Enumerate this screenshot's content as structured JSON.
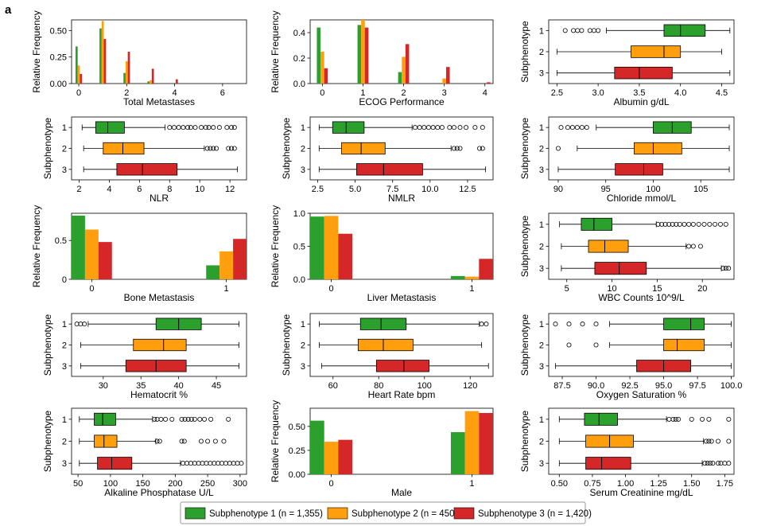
{
  "panel_label": "a",
  "colors": {
    "s1": "#2ca02c",
    "s2": "#ff9f0e",
    "s3": "#d62728"
  },
  "legend": [
    {
      "label": "Subphenotype 1 (n = 1,355)",
      "color": "#2ca02c"
    },
    {
      "label": "Subphenotype 2 (n = 450)",
      "color": "#ff9f0e"
    },
    {
      "label": "Subphenotype 3 (n = 1,420)",
      "color": "#d62728"
    }
  ],
  "chart_data": [
    {
      "type": "bar",
      "xlabel": "Total Metastases",
      "ylabel": "Relative Frequency",
      "xlim": [
        -0.3,
        7.0
      ],
      "ylim": [
        0,
        0.6
      ],
      "xticks": [
        0,
        2,
        4,
        6
      ],
      "yticks": [
        0,
        0.25,
        0.5
      ],
      "yticklabels": [
        "0.00",
        "0.25",
        "0.50"
      ],
      "categories": [
        0,
        1,
        2,
        3,
        4,
        5,
        6
      ],
      "series": [
        {
          "name": "Subphenotype 1",
          "values": [
            0.35,
            0.52,
            0.1,
            0.02,
            0.0,
            0.0,
            0.0
          ]
        },
        {
          "name": "Subphenotype 2",
          "values": [
            0.17,
            0.59,
            0.21,
            0.03,
            0.0,
            0.0,
            0.0
          ]
        },
        {
          "name": "Subphenotype 3",
          "values": [
            0.09,
            0.42,
            0.3,
            0.14,
            0.04,
            0.0,
            0.0
          ]
        }
      ]
    },
    {
      "type": "bar",
      "xlabel": "ECOG Performance",
      "ylabel": "Relative Frequency",
      "xlim": [
        -0.3,
        4.2
      ],
      "ylim": [
        0,
        0.5
      ],
      "xticks": [
        0,
        1,
        2,
        3,
        4
      ],
      "yticks": [
        0,
        0.2,
        0.4
      ],
      "yticklabels": [
        "0.0",
        "0.2",
        "0.4"
      ],
      "categories": [
        0,
        1,
        2,
        3,
        4
      ],
      "series": [
        {
          "name": "Subphenotype 1",
          "values": [
            0.44,
            0.46,
            0.09,
            0.0,
            0.0
          ]
        },
        {
          "name": "Subphenotype 2",
          "values": [
            0.25,
            0.5,
            0.21,
            0.04,
            0.0
          ]
        },
        {
          "name": "Subphenotype 3",
          "values": [
            0.12,
            0.44,
            0.31,
            0.13,
            0.01
          ]
        }
      ]
    },
    {
      "type": "box",
      "xlabel": "Albumin g/dL",
      "ylabel": "Subphenotype",
      "xlim": [
        2.4,
        4.65
      ],
      "xticks": [
        2.5,
        3.0,
        3.5,
        4.0,
        4.5
      ],
      "xticklabels": [
        "2.5",
        "3.0",
        "3.5",
        "4.0",
        "4.5"
      ],
      "groups": [
        {
          "name": "1",
          "whislo": 3.1,
          "q1": 3.8,
          "med": 4.0,
          "q3": 4.3,
          "whishi": 4.6,
          "fliers": [
            2.6,
            2.7,
            2.75,
            2.8,
            2.9,
            2.95,
            3.0
          ]
        },
        {
          "name": "2",
          "whislo": 2.5,
          "q1": 3.4,
          "med": 3.8,
          "q3": 4.0,
          "whishi": 4.5,
          "fliers": []
        },
        {
          "name": "3",
          "whislo": 2.5,
          "q1": 3.2,
          "med": 3.5,
          "q3": 3.9,
          "whishi": 4.6,
          "fliers": []
        }
      ]
    },
    {
      "type": "box",
      "xlabel": "NLR",
      "ylabel": "Subphenotype",
      "xlim": [
        1.5,
        13.1
      ],
      "xticks": [
        2,
        4,
        6,
        8,
        10,
        12
      ],
      "xticklabels": [
        "2",
        "4",
        "6",
        "8",
        "10",
        "12"
      ],
      "groups": [
        {
          "name": "1",
          "whislo": 2.2,
          "q1": 3.1,
          "med": 3.9,
          "q3": 5.0,
          "whishi": 7.7,
          "fliers": [
            8.0,
            8.3,
            8.6,
            8.9,
            9.2,
            9.4,
            9.7,
            10.1,
            10.4,
            10.6,
            10.9,
            11.3,
            11.8,
            12.1,
            12.3
          ]
        },
        {
          "name": "2",
          "whislo": 2.3,
          "q1": 3.6,
          "med": 4.9,
          "q3": 6.3,
          "whishi": 10.3,
          "fliers": [
            10.5,
            10.7,
            10.9,
            11.1,
            11.9,
            12.1,
            12.3
          ]
        },
        {
          "name": "3",
          "whislo": 2.3,
          "q1": 4.5,
          "med": 6.2,
          "q3": 8.5,
          "whishi": 12.5,
          "fliers": []
        }
      ]
    },
    {
      "type": "box",
      "xlabel": "NMLR",
      "ylabel": "Subphenotype",
      "xlim": [
        2.0,
        14.2
      ],
      "xticks": [
        2.5,
        5.0,
        7.5,
        10.0,
        12.5
      ],
      "xticklabels": [
        "2.5",
        "5.0",
        "7.5",
        "10.0",
        "12.5"
      ],
      "groups": [
        {
          "name": "1",
          "whislo": 2.6,
          "q1": 3.5,
          "med": 4.4,
          "q3": 5.6,
          "whishi": 8.8,
          "fliers": [
            9.0,
            9.3,
            9.6,
            9.9,
            10.2,
            10.5,
            10.8,
            11.3,
            11.6,
            12.0,
            12.4,
            13.0,
            13.5
          ]
        },
        {
          "name": "2",
          "whislo": 2.6,
          "q1": 4.1,
          "med": 5.4,
          "q3": 7.0,
          "whishi": 11.4,
          "fliers": [
            11.6,
            11.8,
            12.0,
            13.3,
            13.5
          ]
        },
        {
          "name": "3",
          "whislo": 2.6,
          "q1": 5.1,
          "med": 6.9,
          "q3": 9.5,
          "whishi": 13.7,
          "fliers": []
        }
      ]
    },
    {
      "type": "box",
      "xlabel": "Chloride mmol/L",
      "ylabel": "Subphenotype",
      "xlim": [
        89,
        108.5
      ],
      "xticks": [
        90,
        95,
        100,
        105
      ],
      "xticklabels": [
        "90",
        "95",
        "100",
        "105"
      ],
      "groups": [
        {
          "name": "1",
          "whislo": 94,
          "q1": 100,
          "med": 102,
          "q3": 104,
          "whishi": 108,
          "fliers": [
            90.3,
            91,
            91.5,
            92,
            92.5,
            93
          ]
        },
        {
          "name": "2",
          "whislo": 92,
          "q1": 98,
          "med": 100,
          "q3": 103,
          "whishi": 108,
          "fliers": [
            90
          ]
        },
        {
          "name": "3",
          "whislo": 90,
          "q1": 96,
          "med": 99,
          "q3": 101,
          "whishi": 108,
          "fliers": []
        }
      ]
    },
    {
      "type": "bar",
      "xlabel": "Bone Metastasis",
      "ylabel": "Relative Frequency",
      "xlim": [
        -0.15,
        1.15
      ],
      "ylim": [
        0,
        0.85
      ],
      "xticks": [
        0,
        1
      ],
      "yticks": [
        0,
        0.5
      ],
      "yticklabels": [
        "0",
        "0.5"
      ],
      "categories": [
        0,
        1
      ],
      "series": [
        {
          "name": "Subphenotype 1",
          "values": [
            0.82,
            0.18
          ]
        },
        {
          "name": "Subphenotype 2",
          "values": [
            0.64,
            0.36
          ]
        },
        {
          "name": "Subphenotype 3",
          "values": [
            0.48,
            0.52
          ]
        }
      ]
    },
    {
      "type": "bar",
      "xlabel": "Liver Metastasis",
      "ylabel": "Relative Frequency",
      "xlim": [
        -0.15,
        1.15
      ],
      "ylim": [
        0,
        1.0
      ],
      "xticks": [
        0,
        1
      ],
      "yticks": [
        0,
        0.5,
        1.0
      ],
      "yticklabels": [
        "0.0",
        "0.5",
        "1.0"
      ],
      "categories": [
        0,
        1
      ],
      "series": [
        {
          "name": "Subphenotype 1",
          "values": [
            0.95,
            0.05
          ]
        },
        {
          "name": "Subphenotype 2",
          "values": [
            0.96,
            0.04
          ]
        },
        {
          "name": "Subphenotype 3",
          "values": [
            0.69,
            0.31
          ]
        }
      ]
    },
    {
      "type": "box",
      "xlabel": "WBC Counts 10^9/L",
      "ylabel": "Subphenotype",
      "xlim": [
        3.0,
        23.5
      ],
      "xticks": [
        5,
        10,
        15,
        20
      ],
      "xticklabels": [
        "5",
        "10",
        "15",
        "20"
      ],
      "groups": [
        {
          "name": "1",
          "whislo": 4.2,
          "q1": 6.6,
          "med": 8.0,
          "q3": 10.0,
          "whishi": 14.9,
          "fliers": [
            15.1,
            15.5,
            15.9,
            16.3,
            16.7,
            17.1,
            17.5,
            18.0,
            18.5,
            19.0,
            19.6,
            20.2,
            20.8,
            21.4,
            22.0,
            22.6
          ]
        },
        {
          "name": "2",
          "whislo": 4.4,
          "q1": 7.4,
          "med": 9.2,
          "q3": 11.8,
          "whishi": 18.2,
          "fliers": [
            18.5,
            19.0,
            19.8
          ]
        },
        {
          "name": "3",
          "whislo": 4.4,
          "q1": 8.1,
          "med": 10.8,
          "q3": 13.8,
          "whishi": 22.1,
          "fliers": [
            22.3,
            22.6,
            22.9
          ]
        }
      ]
    },
    {
      "type": "box",
      "xlabel": "Hematocrit %",
      "ylabel": "Subphenotype",
      "xlim": [
        25.8,
        49.0
      ],
      "xticks": [
        30,
        35,
        40,
        45
      ],
      "xticklabels": [
        "30",
        "35",
        "40",
        "45"
      ],
      "groups": [
        {
          "name": "1",
          "whislo": 28,
          "q1": 37,
          "med": 40,
          "q3": 43,
          "whishi": 48,
          "fliers": [
            26.5,
            27,
            27.5
          ]
        },
        {
          "name": "2",
          "whislo": 27,
          "q1": 34,
          "med": 38,
          "q3": 41,
          "whishi": 48,
          "fliers": []
        },
        {
          "name": "3",
          "whislo": 27,
          "q1": 33,
          "med": 37,
          "q3": 41,
          "whishi": 48,
          "fliers": []
        }
      ]
    },
    {
      "type": "box",
      "xlabel": "Heart Rate bpm",
      "ylabel": "Subphenotype",
      "xlim": [
        50,
        130
      ],
      "xticks": [
        60,
        80,
        100,
        120
      ],
      "xticklabels": [
        "60",
        "80",
        "100",
        "120"
      ],
      "groups": [
        {
          "name": "1",
          "whislo": 54,
          "q1": 72,
          "med": 81,
          "q3": 92,
          "whishi": 124,
          "fliers": [
            125,
            127
          ]
        },
        {
          "name": "2",
          "whislo": 54,
          "q1": 71,
          "med": 82,
          "q3": 95,
          "whishi": 125,
          "fliers": []
        },
        {
          "name": "3",
          "whislo": 55,
          "q1": 79,
          "med": 91,
          "q3": 102,
          "whishi": 128,
          "fliers": []
        }
      ]
    },
    {
      "type": "box",
      "xlabel": "Oxygen Saturation %",
      "ylabel": "Subphenotype",
      "xlim": [
        86.5,
        100.2
      ],
      "xticks": [
        87.5,
        90.0,
        92.5,
        95.0,
        97.5,
        100.0
      ],
      "xticklabels": [
        "87.5",
        "90.0",
        "92.5",
        "95.0",
        "97.5",
        "100.0"
      ],
      "groups": [
        {
          "name": "1",
          "whislo": 91,
          "q1": 95,
          "med": 97,
          "q3": 98,
          "whishi": 100,
          "fliers": [
            87,
            88,
            89,
            90
          ]
        },
        {
          "name": "2",
          "whislo": 91,
          "q1": 95,
          "med": 96,
          "q3": 98,
          "whishi": 100,
          "fliers": [
            88,
            90
          ]
        },
        {
          "name": "3",
          "whislo": 87,
          "q1": 93,
          "med": 95,
          "q3": 97,
          "whishi": 100,
          "fliers": []
        }
      ]
    },
    {
      "type": "box",
      "xlabel": "Alkaline Phosphatase U/L",
      "ylabel": "Subphenotype",
      "xlim": [
        40,
        310
      ],
      "xticks": [
        50,
        100,
        150,
        200,
        250,
        300
      ],
      "xticklabels": [
        "50",
        "100",
        "150",
        "200",
        "250",
        "300"
      ],
      "groups": [
        {
          "name": "1",
          "whislo": 52,
          "q1": 75,
          "med": 88,
          "q3": 108,
          "whishi": 165,
          "fliers": [
            168,
            172,
            178,
            185,
            195,
            210,
            215,
            220,
            225,
            230,
            238,
            245,
            255,
            282
          ]
        },
        {
          "name": "2",
          "whislo": 52,
          "q1": 75,
          "med": 90,
          "q3": 110,
          "whishi": 170,
          "fliers": [
            172,
            176,
            210,
            214,
            240,
            250,
            262,
            275
          ]
        },
        {
          "name": "3",
          "whislo": 52,
          "q1": 80,
          "med": 102,
          "q3": 133,
          "whishi": 208,
          "fliers": [
            212,
            218,
            224,
            230,
            236,
            242,
            248,
            254,
            260,
            266,
            272,
            278,
            284,
            290,
            296,
            302
          ]
        }
      ]
    },
    {
      "type": "bar",
      "xlabel": "Male",
      "ylabel": "Relative Frequency",
      "xlim": [
        -0.15,
        1.15
      ],
      "ylim": [
        0,
        0.69
      ],
      "xticks": [
        0,
        1
      ],
      "yticks": [
        0,
        0.25,
        0.5
      ],
      "yticklabels": [
        "0.00",
        "0.25",
        "0.50"
      ],
      "categories": [
        0,
        1
      ],
      "series": [
        {
          "name": "Subphenotype 1",
          "values": [
            0.56,
            0.44
          ]
        },
        {
          "name": "Subphenotype 2",
          "values": [
            0.34,
            0.66
          ]
        },
        {
          "name": "Subphenotype 3",
          "values": [
            0.36,
            0.64
          ]
        }
      ]
    },
    {
      "type": "box",
      "xlabel": "Serum Creatinine mg/dL",
      "ylabel": "Subphenotype",
      "xlim": [
        0.42,
        1.82
      ],
      "xticks": [
        0.5,
        0.75,
        1.0,
        1.25,
        1.5,
        1.75
      ],
      "xticklabels": [
        "0.50",
        "0.75",
        "1.00",
        "1.25",
        "1.50",
        "1.75"
      ],
      "groups": [
        {
          "name": "1",
          "whislo": 0.5,
          "q1": 0.69,
          "med": 0.8,
          "q3": 0.94,
          "whishi": 1.31,
          "fliers": [
            1.33,
            1.36,
            1.38,
            1.4,
            1.5,
            1.58,
            1.63,
            1.78
          ]
        },
        {
          "name": "2",
          "whislo": 0.5,
          "q1": 0.7,
          "med": 0.88,
          "q3": 1.06,
          "whishi": 1.59,
          "fliers": [
            1.61,
            1.63,
            1.65,
            1.7,
            1.78
          ]
        },
        {
          "name": "3",
          "whislo": 0.5,
          "q1": 0.7,
          "med": 0.82,
          "q3": 1.04,
          "whishi": 1.58,
          "fliers": [
            1.6,
            1.62,
            1.64,
            1.66,
            1.7,
            1.72,
            1.75,
            1.78
          ]
        }
      ]
    }
  ]
}
